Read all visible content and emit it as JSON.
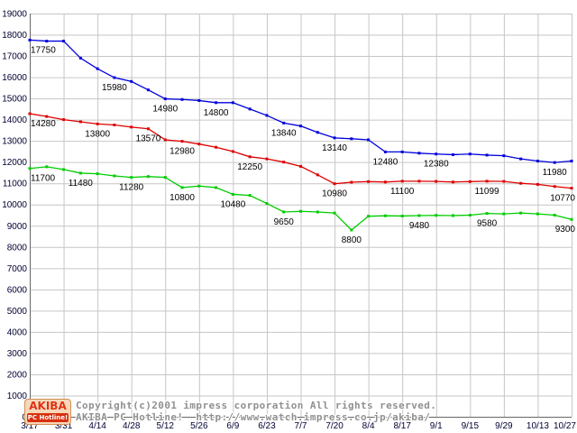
{
  "chart_data": {
    "type": "line",
    "title": "",
    "xlabel": "",
    "ylabel": "",
    "ylim": [
      0,
      19000
    ],
    "ytick_step": 1000,
    "grid": true,
    "legend": "none",
    "x_labels": [
      "3/17",
      "3/31",
      "4/14",
      "4/28",
      "5/12",
      "5/26",
      "6/9",
      "6/23",
      "7/7",
      "7/20",
      "8/4",
      "8/17",
      "9/1",
      "9/15",
      "9/29",
      "10/13",
      "10/27"
    ],
    "x": [
      "3/17",
      "3/24",
      "3/31",
      "4/7",
      "4/14",
      "4/21",
      "4/28",
      "5/5",
      "5/12",
      "5/19",
      "5/26",
      "6/2",
      "6/9",
      "6/16",
      "6/23",
      "6/30",
      "7/7",
      "7/14",
      "7/20",
      "7/28",
      "8/4",
      "8/11",
      "8/17",
      "8/25",
      "9/1",
      "9/8",
      "9/15",
      "9/22",
      "9/29",
      "10/6",
      "10/13",
      "10/20",
      "10/27"
    ],
    "series": [
      {
        "name": "blue",
        "color": "#0000dd",
        "values": [
          17750,
          17700,
          17700,
          16900,
          16400,
          15980,
          15800,
          15400,
          14980,
          14950,
          14900,
          14800,
          14800,
          14500,
          14200,
          13840,
          13700,
          13400,
          13140,
          13100,
          13050,
          12480,
          12480,
          12420,
          12380,
          12350,
          12380,
          12330,
          12300,
          12150,
          12050,
          11980,
          12050
        ]
      },
      {
        "name": "red",
        "color": "#dd0000",
        "values": [
          14280,
          14150,
          14000,
          13900,
          13800,
          13750,
          13650,
          13570,
          13050,
          12980,
          12850,
          12700,
          12500,
          12250,
          12150,
          12000,
          11800,
          11400,
          10980,
          11050,
          11080,
          11060,
          11100,
          11100,
          11090,
          11060,
          11080,
          11099,
          11090,
          11000,
          10950,
          10850,
          10770
        ]
      },
      {
        "name": "green",
        "color": "#00cc00",
        "values": [
          11700,
          11780,
          11650,
          11480,
          11450,
          11350,
          11280,
          11320,
          11280,
          10800,
          10870,
          10800,
          10480,
          10430,
          10050,
          9650,
          9680,
          9650,
          9600,
          8800,
          9450,
          9470,
          9460,
          9480,
          9490,
          9480,
          9500,
          9580,
          9560,
          9600,
          9560,
          9500,
          9300
        ]
      }
    ],
    "annotations": [
      {
        "series": 0,
        "index": 0,
        "label": "17750"
      },
      {
        "series": 0,
        "index": 5,
        "label": "15980"
      },
      {
        "series": 0,
        "index": 8,
        "label": "14980"
      },
      {
        "series": 0,
        "index": 11,
        "label": "14800"
      },
      {
        "series": 0,
        "index": 15,
        "label": "13840"
      },
      {
        "series": 0,
        "index": 18,
        "label": "13140"
      },
      {
        "series": 0,
        "index": 21,
        "label": "12480"
      },
      {
        "series": 0,
        "index": 24,
        "label": "12380"
      },
      {
        "series": 0,
        "index": 31,
        "label": "11980"
      },
      {
        "series": 1,
        "index": 0,
        "label": "14280"
      },
      {
        "series": 1,
        "index": 4,
        "label": "13800"
      },
      {
        "series": 1,
        "index": 7,
        "label": "13570"
      },
      {
        "series": 1,
        "index": 9,
        "label": "12980"
      },
      {
        "series": 1,
        "index": 13,
        "label": "12250"
      },
      {
        "series": 1,
        "index": 18,
        "label": "10980"
      },
      {
        "series": 1,
        "index": 22,
        "label": "11100"
      },
      {
        "series": 1,
        "index": 27,
        "label": "11099"
      },
      {
        "series": 1,
        "index": 32,
        "label": "10770"
      },
      {
        "series": 2,
        "index": 0,
        "label": "11700"
      },
      {
        "series": 2,
        "index": 3,
        "label": "11480"
      },
      {
        "series": 2,
        "index": 6,
        "label": "11280"
      },
      {
        "series": 2,
        "index": 9,
        "label": "10800"
      },
      {
        "series": 2,
        "index": 12,
        "label": "10480"
      },
      {
        "series": 2,
        "index": 15,
        "label": "9650"
      },
      {
        "series": 2,
        "index": 19,
        "label": "8800"
      },
      {
        "series": 2,
        "index": 23,
        "label": "9480"
      },
      {
        "series": 2,
        "index": 27,
        "label": "9580"
      },
      {
        "series": 2,
        "index": 32,
        "label": "9300"
      }
    ]
  },
  "footer": {
    "copyright_line1": "Copyright(c)2001 impress corporation All rights reserved.",
    "copyright_line2": "AKIBA PC Hotline!  http://www.watch.impress.co.jp/akiba/",
    "logo_line1": "AKIBA",
    "logo_line2": "PC Hotline!"
  },
  "colors": {
    "background": "#ffffff",
    "grid": "#c6c6c6",
    "axis": "#666666",
    "tick_label": "#000033",
    "value_label": "#000000",
    "copyright_text": "#909090",
    "logo_bg": "#f6d7b8",
    "logo_red": "#d83010"
  }
}
